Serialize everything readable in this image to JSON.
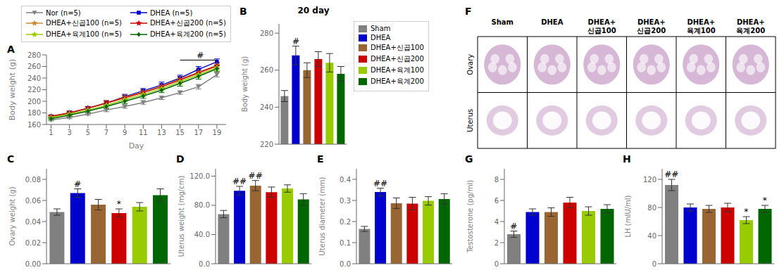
{
  "chart_data": [
    {
      "type": "line",
      "x": [
        1,
        3,
        5,
        7,
        9,
        11,
        13,
        15,
        17,
        19
      ],
      "xlabel": "Day",
      "ylabel": "Body weight (g)",
      "xlim": [
        0.5,
        20
      ],
      "xticks": [
        1,
        3,
        5,
        7,
        9,
        11,
        13,
        15,
        17,
        19
      ],
      "ylim": [
        160,
        280
      ],
      "yticks": [
        160,
        180,
        200,
        220,
        240,
        260,
        280
      ],
      "grid": false,
      "legend": "top",
      "series": [
        {
          "name": "Nor (n=5)",
          "color": "#808080",
          "marker": "triangle-down",
          "values": [
            168,
            172,
            178,
            185,
            191,
            198,
            206,
            215,
            225,
            246
          ],
          "errors": [
            2,
            2,
            2,
            3,
            3,
            3,
            3,
            3,
            4,
            4
          ]
        },
        {
          "name": "DHEA (n=5)",
          "color": "#0000CC",
          "marker": "square",
          "values": [
            174,
            180,
            188,
            197,
            208,
            218,
            228,
            240,
            255,
            268
          ],
          "errors": [
            2,
            3,
            3,
            4,
            4,
            4,
            5,
            5,
            5,
            5
          ]
        },
        {
          "name": "DHEA+신곱100 (n=5)",
          "color": "#CC8833",
          "marker": "star",
          "values": [
            174,
            180,
            188,
            197,
            207,
            216,
            226,
            238,
            250,
            262
          ],
          "errors": [
            2,
            3,
            3,
            4,
            4,
            4,
            4,
            5,
            5,
            5
          ]
        },
        {
          "name": "DHEA+신곱200 (n=5)",
          "color": "#CC0000",
          "marker": "star",
          "values": [
            174,
            180,
            188,
            197,
            206,
            215,
            225,
            237,
            249,
            261
          ],
          "errors": [
            2,
            3,
            3,
            4,
            4,
            4,
            4,
            5,
            5,
            5
          ]
        },
        {
          "name": "DHEA+육계100 (n=5)",
          "color": "#99CC00",
          "marker": "star",
          "values": [
            172,
            178,
            185,
            193,
            203,
            212,
            222,
            234,
            246,
            258
          ],
          "errors": [
            2,
            3,
            3,
            4,
            4,
            4,
            4,
            5,
            5,
            5
          ]
        },
        {
          "name": "DHEA+육계200 (n=5)",
          "color": "#006600",
          "marker": "diamond",
          "values": [
            170,
            176,
            183,
            191,
            200,
            209,
            219,
            231,
            243,
            256
          ],
          "errors": [
            2,
            3,
            3,
            4,
            4,
            4,
            4,
            5,
            5,
            5
          ]
        }
      ],
      "annotations": [
        {
          "text": "A"
        },
        {
          "text": "#",
          "x": 17.2,
          "y": 273,
          "bracket_x": [
            15,
            19
          ],
          "bracket_y": 271
        }
      ]
    },
    {
      "type": "bar",
      "title": "20 day",
      "categories": [
        "Sham",
        "DHEA",
        "DHEA+신곱100",
        "DHEA+신곱200",
        "DHEA+육계100",
        "DHEA+육계200"
      ],
      "colors": [
        "#808080",
        "#0000CC",
        "#996633",
        "#CC0000",
        "#99CC00",
        "#006600"
      ],
      "values": [
        246,
        268,
        260,
        266,
        264,
        258
      ],
      "errors": [
        3,
        5,
        4,
        4,
        5,
        4
      ],
      "ylabel": "Body weight (g)",
      "ylim": [
        220,
        285
      ],
      "yticks": [
        220,
        240,
        260,
        280
      ],
      "tick_labels": "y",
      "grid": false,
      "legend": "right",
      "annotations": [
        {
          "text": "B"
        },
        {
          "text": "#",
          "category": "DHEA"
        }
      ]
    },
    {
      "type": "bar",
      "categories": [
        "Sham",
        "DHEA",
        "DHEA+신곱100",
        "DHEA+신곱200",
        "DHEA+육계100",
        "DHEA+육계200"
      ],
      "colors": [
        "#808080",
        "#0000CC",
        "#996633",
        "#CC0000",
        "#99CC00",
        "#006600"
      ],
      "values": [
        0.049,
        0.067,
        0.056,
        0.048,
        0.054,
        0.065
      ],
      "errors": [
        0.003,
        0.004,
        0.005,
        0.004,
        0.004,
        0.006
      ],
      "ylabel": "Ovary weight (g)",
      "ylim": [
        0,
        0.09
      ],
      "yticks": [
        {
          "value": 0,
          "label": "0.00"
        },
        {
          "value": 0.02,
          "label": "0.02"
        },
        {
          "value": 0.04,
          "label": "0.04"
        },
        {
          "value": 0.06,
          "label": "0.06"
        },
        {
          "value": 0.08,
          "label": "0.08"
        }
      ],
      "tick_labels": "y",
      "grid": false,
      "annotations": [
        {
          "text": "C"
        },
        {
          "text": "#",
          "category": "DHEA"
        },
        {
          "text": "*",
          "category": "DHEA+신곱200"
        }
      ]
    },
    {
      "type": "bar",
      "categories": [
        "Sham",
        "DHEA",
        "DHEA+신곱100",
        "DHEA+신곱200",
        "DHEA+육계100",
        "DHEA+육계200"
      ],
      "colors": [
        "#808080",
        "#0000CC",
        "#996633",
        "#CC0000",
        "#99CC00",
        "#006600"
      ],
      "values": [
        68,
        100,
        107,
        98,
        103,
        88
      ],
      "errors": [
        5,
        6,
        7,
        7,
        5,
        8
      ],
      "ylabel": "Uterus weight (mg/cm)",
      "ylim": [
        0,
        130
      ],
      "yticks": [
        {
          "value": 0,
          "label": "0.0"
        },
        {
          "value": 40,
          "label": "40.0"
        },
        {
          "value": 80,
          "label": "80.0"
        },
        {
          "value": 120,
          "label": "120.0"
        }
      ],
      "tick_labels": "y",
      "grid": false,
      "annotations": [
        {
          "text": "D"
        },
        {
          "text": "##",
          "category": "DHEA"
        },
        {
          "text": "##",
          "category": "DHEA+신곱100"
        }
      ]
    },
    {
      "type": "bar",
      "categories": [
        "Sham",
        "DHEA",
        "DHEA+신곱100",
        "DHEA+신곱200",
        "DHEA+육계100",
        "DHEA+육계200"
      ],
      "colors": [
        "#808080",
        "#0000CC",
        "#996633",
        "#CC0000",
        "#99CC00",
        "#006600"
      ],
      "values": [
        0.165,
        0.34,
        0.287,
        0.285,
        0.298,
        0.307
      ],
      "errors": [
        0.012,
        0.018,
        0.025,
        0.03,
        0.02,
        0.025
      ],
      "ylabel": "Uterus diameter (mm)",
      "ylim": [
        0,
        0.45
      ],
      "yticks": [
        {
          "value": 0,
          "label": "0.0"
        },
        0.1,
        0.2,
        0.3,
        0.4
      ],
      "tick_labels": "y",
      "grid": false,
      "annotations": [
        {
          "text": "E"
        },
        {
          "text": "##",
          "category": "DHEA"
        }
      ]
    },
    {
      "type": "image_grid",
      "categories": [
        "Sham",
        "DHEA",
        "DHEA+\n신곱100",
        "DHEA+\n신곱200",
        "DHEA+\n육계100",
        "DHEA+\n육계200"
      ],
      "rows": [
        "Ovary",
        "Uterus"
      ],
      "annotations": [
        {
          "text": "F"
        }
      ]
    },
    {
      "type": "bar",
      "categories": [
        "Sham",
        "DHEA",
        "DHEA+신곱100",
        "DHEA+신곱200",
        "DHEA+육계100",
        "DHEA+육계200"
      ],
      "colors": [
        "#808080",
        "#0000CC",
        "#996633",
        "#CC0000",
        "#99CC00",
        "#006600"
      ],
      "values": [
        2.8,
        4.9,
        4.9,
        5.8,
        5.0,
        5.2
      ],
      "errors": [
        0.3,
        0.3,
        0.4,
        0.5,
        0.4,
        0.4
      ],
      "ylabel": "Testosterone (pg/ml)",
      "ylim": [
        0,
        9
      ],
      "yticks": [
        0,
        2,
        4,
        6,
        8
      ],
      "tick_labels": "y",
      "grid": false,
      "annotations": [
        {
          "text": "G"
        },
        {
          "text": "#",
          "category": "Sham"
        }
      ]
    },
    {
      "type": "bar",
      "categories": [
        "Sham",
        "DHEA",
        "DHEA+신곱100",
        "DHEA+신곱200",
        "DHEA+육계100",
        "DHEA+육계200"
      ],
      "colors": [
        "#808080",
        "#0000CC",
        "#996633",
        "#CC0000",
        "#99CC00",
        "#006600"
      ],
      "values": [
        112,
        80,
        78,
        80,
        62,
        78
      ],
      "errors": [
        8,
        5,
        5,
        6,
        5,
        5
      ],
      "ylabel": "LH (mIU/ml)",
      "ylim": [
        0,
        135
      ],
      "yticks": [
        0,
        40,
        80,
        120
      ],
      "tick_labels": "y",
      "grid": false,
      "annotations": [
        {
          "text": "H"
        },
        {
          "text": "##",
          "category": "Sham"
        },
        {
          "text": "*",
          "category": "DHEA+육계100"
        },
        {
          "text": "*",
          "category": "DHEA+육계200"
        }
      ]
    }
  ]
}
